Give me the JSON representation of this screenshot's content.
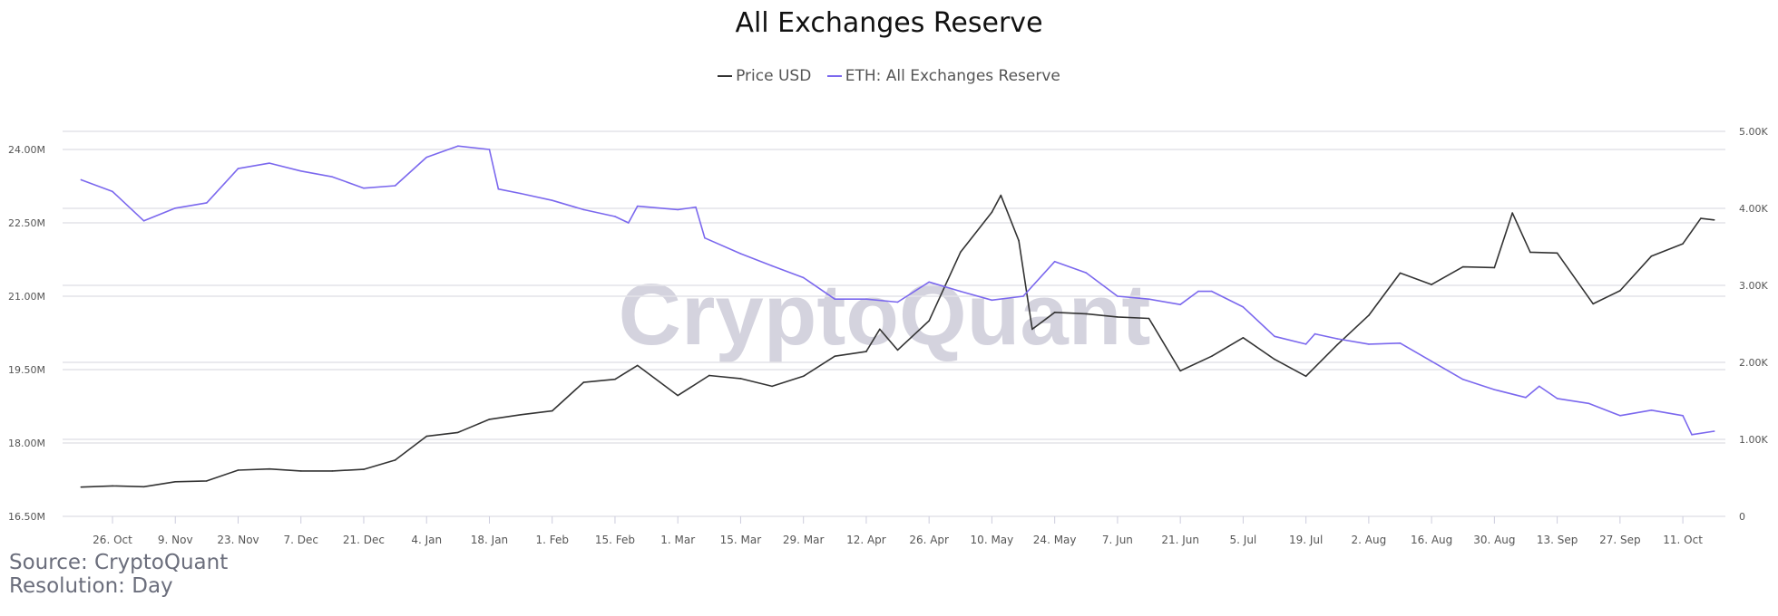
{
  "chart_data": {
    "type": "line",
    "title": "All Exchanges Reserve",
    "watermark": "CryptoQuant",
    "source": "Source: CryptoQuant",
    "resolution": "Resolution: Day",
    "grid": true,
    "legend_placement": "top",
    "x_ticks": [
      "26. Oct",
      "9. Nov",
      "23. Nov",
      "7. Dec",
      "21. Dec",
      "4. Jan",
      "18. Jan",
      "1. Feb",
      "15. Feb",
      "1. Mar",
      "15. Mar",
      "29. Mar",
      "12. Apr",
      "26. Apr",
      "10. May",
      "24. May",
      "7. Jun",
      "21. Jun",
      "5. Jul",
      "19. Jul",
      "2. Aug",
      "16. Aug",
      "30. Aug",
      "13. Sep",
      "27. Sep",
      "11. Oct"
    ],
    "x_range": [
      "2020-10-19",
      "2021-10-18"
    ],
    "left_axis": {
      "ticks": [
        "16.50M",
        "18.00M",
        "19.50M",
        "21.00M",
        "22.50M",
        "24.00M"
      ],
      "range": [
        16.5,
        24.0
      ],
      "unit": "M"
    },
    "right_axis": {
      "ticks": [
        "0",
        "1.00K",
        "2.00K",
        "3.00K",
        "4.00K",
        "5.00K"
      ],
      "range": [
        0,
        5.0
      ],
      "unit": "K"
    },
    "series": [
      {
        "name": "Price USD",
        "axis": "right",
        "color": "#333333",
        "points": [
          [
            "2020-10-19",
            0.38
          ],
          [
            "2020-10-26",
            0.395
          ],
          [
            "2020-11-02",
            0.385
          ],
          [
            "2020-11-09",
            0.45
          ],
          [
            "2020-11-16",
            0.46
          ],
          [
            "2020-11-23",
            0.6
          ],
          [
            "2020-11-30",
            0.615
          ],
          [
            "2020-12-07",
            0.59
          ],
          [
            "2020-12-14",
            0.59
          ],
          [
            "2020-12-21",
            0.61
          ],
          [
            "2020-12-28",
            0.73
          ],
          [
            "2021-01-04",
            1.04
          ],
          [
            "2021-01-11",
            1.09
          ],
          [
            "2021-01-18",
            1.26
          ],
          [
            "2021-01-25",
            1.32
          ],
          [
            "2021-02-01",
            1.37
          ],
          [
            "2021-02-08",
            1.74
          ],
          [
            "2021-02-15",
            1.78
          ],
          [
            "2021-02-20",
            1.96
          ],
          [
            "2021-03-01",
            1.57
          ],
          [
            "2021-03-08",
            1.83
          ],
          [
            "2021-03-15",
            1.79
          ],
          [
            "2021-03-22",
            1.69
          ],
          [
            "2021-03-29",
            1.82
          ],
          [
            "2021-04-05",
            2.08
          ],
          [
            "2021-04-12",
            2.14
          ],
          [
            "2021-04-15",
            2.43
          ],
          [
            "2021-04-19",
            2.16
          ],
          [
            "2021-04-26",
            2.54
          ],
          [
            "2021-05-03",
            3.43
          ],
          [
            "2021-05-10",
            3.95
          ],
          [
            "2021-05-12",
            4.17
          ],
          [
            "2021-05-16",
            3.58
          ],
          [
            "2021-05-19",
            2.43
          ],
          [
            "2021-05-24",
            2.65
          ],
          [
            "2021-05-31",
            2.63
          ],
          [
            "2021-06-07",
            2.59
          ],
          [
            "2021-06-14",
            2.57
          ],
          [
            "2021-06-21",
            1.89
          ],
          [
            "2021-06-28",
            2.08
          ],
          [
            "2021-07-05",
            2.32
          ],
          [
            "2021-07-12",
            2.04
          ],
          [
            "2021-07-19",
            1.82
          ],
          [
            "2021-07-26",
            2.23
          ],
          [
            "2021-08-02",
            2.61
          ],
          [
            "2021-08-09",
            3.16
          ],
          [
            "2021-08-16",
            3.01
          ],
          [
            "2021-08-23",
            3.24
          ],
          [
            "2021-08-30",
            3.23
          ],
          [
            "2021-09-03",
            3.94
          ],
          [
            "2021-09-07",
            3.43
          ],
          [
            "2021-09-13",
            3.42
          ],
          [
            "2021-09-21",
            2.76
          ],
          [
            "2021-09-27",
            2.93
          ],
          [
            "2021-10-04",
            3.38
          ],
          [
            "2021-10-11",
            3.54
          ],
          [
            "2021-10-15",
            3.87
          ],
          [
            "2021-10-18",
            3.85
          ]
        ]
      },
      {
        "name": "ETH: All Exchanges Reserve",
        "axis": "left",
        "color": "#7b68ee",
        "points": [
          [
            "2020-10-19",
            23.38
          ],
          [
            "2020-10-26",
            23.14
          ],
          [
            "2020-11-02",
            22.54
          ],
          [
            "2020-11-09",
            22.8
          ],
          [
            "2020-11-16",
            22.91
          ],
          [
            "2020-11-23",
            23.61
          ],
          [
            "2020-11-30",
            23.72
          ],
          [
            "2020-12-07",
            23.56
          ],
          [
            "2020-12-14",
            23.44
          ],
          [
            "2020-12-21",
            23.21
          ],
          [
            "2020-12-28",
            23.26
          ],
          [
            "2021-01-04",
            23.84
          ],
          [
            "2021-01-11",
            24.07
          ],
          [
            "2021-01-18",
            24.0
          ],
          [
            "2021-01-20",
            23.19
          ],
          [
            "2021-01-25",
            23.1
          ],
          [
            "2021-02-01",
            22.96
          ],
          [
            "2021-02-08",
            22.77
          ],
          [
            "2021-02-15",
            22.63
          ],
          [
            "2021-02-18",
            22.5
          ],
          [
            "2021-02-20",
            22.84
          ],
          [
            "2021-03-01",
            22.77
          ],
          [
            "2021-03-05",
            22.82
          ],
          [
            "2021-03-07",
            22.19
          ],
          [
            "2021-03-15",
            21.87
          ],
          [
            "2021-03-22",
            21.62
          ],
          [
            "2021-03-29",
            21.38
          ],
          [
            "2021-04-05",
            20.94
          ],
          [
            "2021-04-12",
            20.94
          ],
          [
            "2021-04-19",
            20.88
          ],
          [
            "2021-04-26",
            21.29
          ],
          [
            "2021-05-03",
            21.1
          ],
          [
            "2021-05-10",
            20.92
          ],
          [
            "2021-05-17",
            21.0
          ],
          [
            "2021-05-24",
            21.71
          ],
          [
            "2021-05-31",
            21.48
          ],
          [
            "2021-06-07",
            21.0
          ],
          [
            "2021-06-14",
            20.94
          ],
          [
            "2021-06-21",
            20.83
          ],
          [
            "2021-06-25",
            21.1
          ],
          [
            "2021-06-28",
            21.1
          ],
          [
            "2021-07-05",
            20.78
          ],
          [
            "2021-07-12",
            20.18
          ],
          [
            "2021-07-19",
            20.02
          ],
          [
            "2021-07-21",
            20.23
          ],
          [
            "2021-07-26",
            20.13
          ],
          [
            "2021-08-02",
            20.02
          ],
          [
            "2021-08-09",
            20.04
          ],
          [
            "2021-08-16",
            19.67
          ],
          [
            "2021-08-23",
            19.3
          ],
          [
            "2021-08-30",
            19.09
          ],
          [
            "2021-09-06",
            18.93
          ],
          [
            "2021-09-09",
            19.16
          ],
          [
            "2021-09-13",
            18.91
          ],
          [
            "2021-09-20",
            18.81
          ],
          [
            "2021-09-27",
            18.56
          ],
          [
            "2021-10-04",
            18.67
          ],
          [
            "2021-10-11",
            18.56
          ],
          [
            "2021-10-13",
            18.17
          ],
          [
            "2021-10-18",
            18.24
          ]
        ]
      }
    ]
  }
}
